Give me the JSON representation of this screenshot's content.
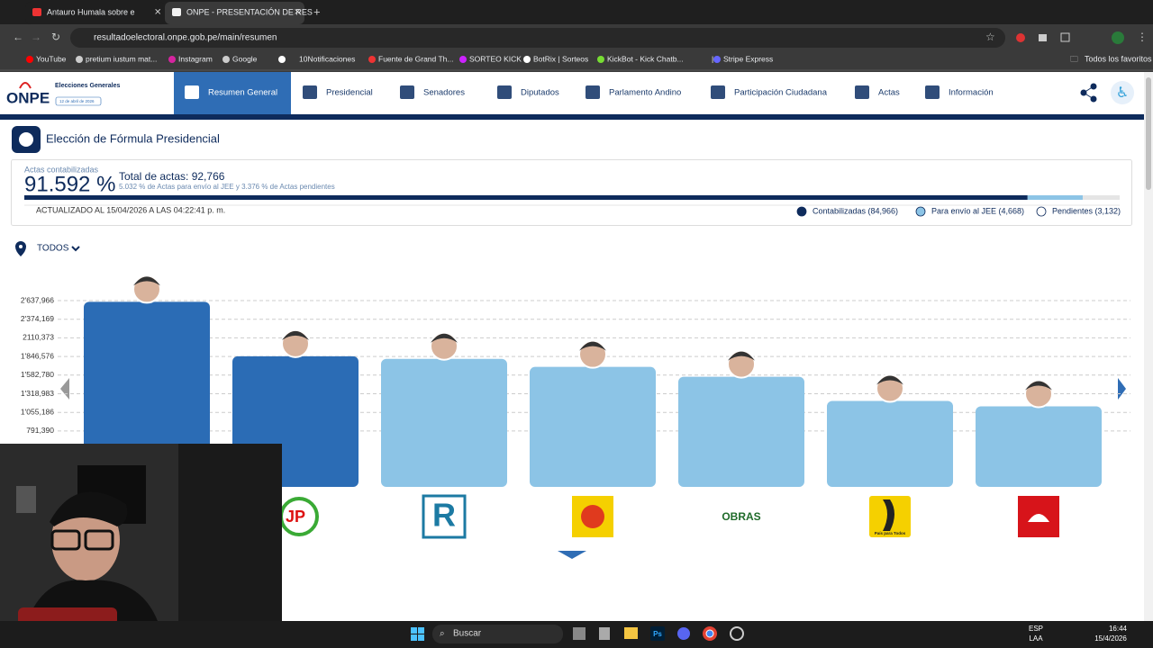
{
  "browser": {
    "tabs": [
      "Antauro Humala sobre e",
      "ONPE - PRESENTACIÓN DE RES"
    ],
    "url": "resultadoelectoral.onpe.gob.pe/main/resumen",
    "bookmarks": [
      "YouTube",
      "pretium iustum mat...",
      "Instagram",
      "Google",
      "10Notificaciones",
      "Fuente de Grand Th...",
      "SORTEO KICK",
      "BotRix | Sorteos",
      "KickBot - Kick Chatb...",
      "|",
      "Stripe Express"
    ],
    "all_bookmarks": "Todos los favoritos"
  },
  "header": {
    "logo": "ONPE",
    "brand": "Elecciones Generales",
    "date": "12 de abril de 2026",
    "nav": [
      "Resumen General",
      "Presidencial",
      "Senadores",
      "Diputados",
      "Parlamento Andino",
      "Participación Ciudadana",
      "Actas",
      "Información"
    ]
  },
  "page": {
    "title": "Elección de Fórmula Presidencial"
  },
  "summary": {
    "counted_label": "Actas contabilizadas",
    "counted_pct": "91.592 %",
    "total": "Total de actas: 92,766",
    "detail": "5.032 % de Actas para envío al JEE y 3.376 % de Actas pendientes",
    "updated": "ACTUALIZADO AL 15/04/2026 A LAS 04:22:41 p. m.",
    "legend": [
      "Contabilizadas (84,966)",
      "Para envío al JEE (4,668)",
      "Pendientes (3,132)"
    ]
  },
  "filter": "TODOS",
  "chart_data": {
    "type": "bar",
    "categories": [
      null,
      "JP",
      "R",
      null,
      "OBRAS",
      "País para Todos",
      null
    ],
    "values": [
      2620000,
      1850000,
      1813000,
      1699000,
      1560000,
      1217000,
      1141000
    ],
    "colors": [
      "#2b6cb5",
      "#2b6cb5",
      "#8cc4e6",
      "#8cc4e6",
      "#8cc4e6",
      "#8cc4e6",
      "#8cc4e6"
    ],
    "ylim": [
      0,
      2637966
    ],
    "yticks": [
      {
        "value": 791390,
        "label": "791,390"
      },
      {
        "value": 1055186,
        "label": "1'055,186"
      },
      {
        "value": 1318983,
        "label": "1'318,983"
      },
      {
        "value": 1582780,
        "label": "1'582,780"
      },
      {
        "value": 1846576,
        "label": "1'846,576"
      },
      {
        "value": 2110373,
        "label": "2110,373"
      },
      {
        "value": 2374169,
        "label": "2'374,169"
      },
      {
        "value": 2637966,
        "label": "2'637,966"
      }
    ],
    "grid": true
  },
  "taskbar": {
    "search": "Buscar",
    "lang": "ESP",
    "layout": "LAA",
    "time": "16:44",
    "date": "15/4/2026",
    "app": "Ps"
  }
}
